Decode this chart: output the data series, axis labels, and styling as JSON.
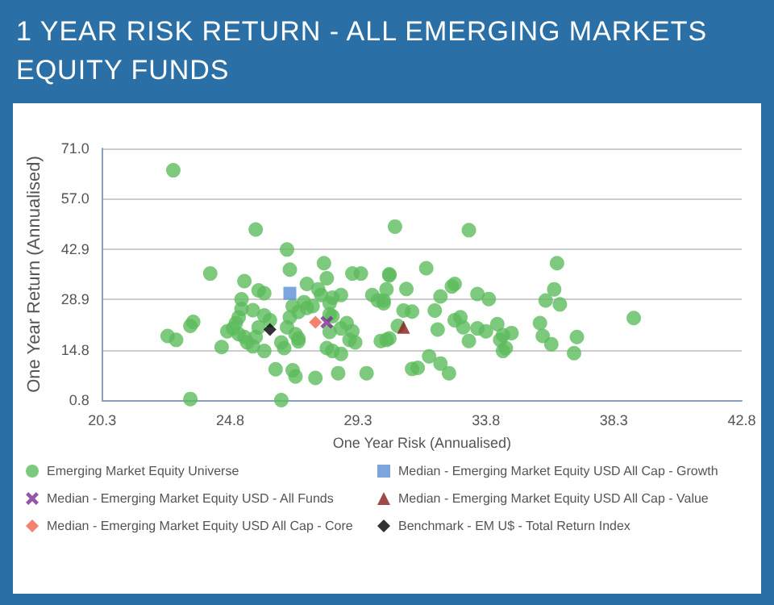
{
  "chart_data": {
    "type": "scatter",
    "title": "1 YEAR RISK RETURN - ALL EMERGING MARKETS EQUITY FUNDS",
    "xlabel": "One Year Risk (Annualised)",
    "ylabel": "One Year Return (Annualised)",
    "xlim": [
      20.3,
      42.8
    ],
    "xticks": [
      20.3,
      24.8,
      29.3,
      33.8,
      38.3,
      42.8
    ],
    "ylim": [
      0.8,
      71.0
    ],
    "yticks": [
      {
        "value": 0.8,
        "label": "0.8"
      },
      {
        "value": 14.8,
        "label": "14.8"
      },
      {
        "value": 28.9,
        "label": "28.9"
      },
      {
        "value": 42.9,
        "label": "42.9"
      },
      {
        "value": 57.0,
        "label": "57.0"
      },
      {
        "value": 71.0,
        "label": "71.0"
      }
    ],
    "grid": "y",
    "legend": "bottom",
    "series": [
      {
        "name": "Emerging Market Equity Universe",
        "color": "#5cbb5c",
        "marker": "circle",
        "x": [
          22.8,
          25.7,
          26.8,
          24.1,
          23.4,
          26.6,
          22.6,
          22.9,
          23.4,
          23.5,
          24.5,
          24.7,
          25.3,
          25.2,
          25.2,
          25.1,
          25.0,
          24.9,
          25.1,
          25.3,
          25.4,
          25.6,
          25.8,
          25.7,
          25.6,
          25.8,
          26.0,
          26.0,
          26.2,
          26.0,
          26.4,
          26.6,
          26.7,
          26.8,
          26.9,
          26.9,
          27.0,
          27.1,
          27.2,
          27.2,
          27.4,
          27.5,
          27.0,
          27.1,
          27.2,
          27.5,
          27.7,
          27.8,
          27.9,
          28.0,
          28.1,
          28.2,
          28.3,
          28.3,
          28.3,
          28.4,
          28.6,
          28.7,
          28.9,
          29.0,
          29.1,
          29.4,
          29.6,
          28.2,
          28.4,
          28.7,
          29.2,
          29.8,
          30.0,
          30.2,
          30.3,
          30.4,
          28.4,
          28.7,
          29.1,
          30.6,
          33.2,
          31.7,
          30.4,
          31.0,
          30.3,
          30.2,
          30.9,
          31.2,
          30.7,
          30.1,
          30.4,
          31.2,
          31.4,
          31.8,
          32.2,
          32.5,
          32.0,
          32.1,
          32.2,
          32.6,
          32.7,
          32.7,
          32.9,
          33.0,
          33.2,
          33.5,
          33.9,
          33.5,
          33.8,
          34.2,
          34.4,
          34.7,
          34.3,
          34.4,
          34.5,
          35.7,
          35.8,
          36.1,
          35.9,
          36.2,
          36.4,
          36.3,
          37.0,
          36.9,
          39.0
        ],
        "values": [
          64.9,
          48.4,
          42.8,
          36.1,
          1.1,
          0.8,
          18.7,
          17.6,
          21.5,
          22.6,
          15.6,
          20.0,
          34.0,
          28.9,
          26.2,
          23.9,
          22.3,
          20.8,
          19.2,
          18.4,
          16.9,
          15.8,
          21.1,
          18.4,
          25.9,
          31.4,
          30.6,
          24.4,
          23.1,
          14.5,
          9.4,
          16.9,
          15.3,
          21.1,
          23.9,
          37.2,
          27.0,
          19.2,
          17.2,
          25.4,
          28.1,
          33.2,
          9.1,
          7.4,
          18.0,
          26.5,
          27.0,
          7.0,
          31.7,
          30.1,
          39.0,
          34.8,
          27.8,
          24.7,
          19.8,
          29.4,
          8.3,
          30.1,
          22.3,
          17.6,
          36.1,
          36.1,
          8.3,
          15.3,
          14.5,
          13.7,
          16.9,
          30.1,
          28.6,
          27.8,
          17.6,
          35.6,
          24.2,
          20.8,
          20.0,
          49.2,
          48.2,
          37.6,
          35.9,
          31.8,
          31.7,
          28.6,
          25.8,
          25.5,
          21.5,
          17.3,
          18.0,
          9.5,
          9.8,
          13.0,
          11.0,
          8.3,
          25.8,
          20.5,
          29.7,
          32.5,
          33.2,
          23.1,
          23.9,
          21.1,
          17.3,
          30.4,
          29.0,
          20.8,
          20.0,
          22.0,
          18.9,
          19.5,
          17.6,
          14.5,
          15.3,
          22.3,
          18.7,
          16.4,
          28.6,
          31.7,
          27.5,
          39.0,
          18.4,
          13.9,
          23.7
        ]
      },
      {
        "name": "Median - Emerging Market Equity USD All Cap - Growth",
        "color": "#5b8fd4",
        "marker": "square",
        "x": [
          26.9
        ],
        "values": [
          30.6
        ]
      },
      {
        "name": "Median - Emerging Market Equity USD - All Funds",
        "color": "#7a2d8f",
        "marker": "cross",
        "x": [
          28.2
        ],
        "values": [
          22.5
        ]
      },
      {
        "name": "Median - Emerging Market Equity USD All Cap - Value",
        "color": "#8b1a1a",
        "marker": "triangle",
        "x": [
          30.9
        ],
        "values": [
          21.1
        ]
      },
      {
        "name": "Median - Emerging Market Equity USD All Cap - Core",
        "color": "#f2634b",
        "marker": "diamond",
        "x": [
          27.8
        ],
        "values": [
          22.5
        ]
      },
      {
        "name": "Benchmark - EM U$ - Total Return Index",
        "color": "#000000",
        "marker": "diamond",
        "x": [
          26.2
        ],
        "values": [
          20.5
        ]
      }
    ]
  }
}
